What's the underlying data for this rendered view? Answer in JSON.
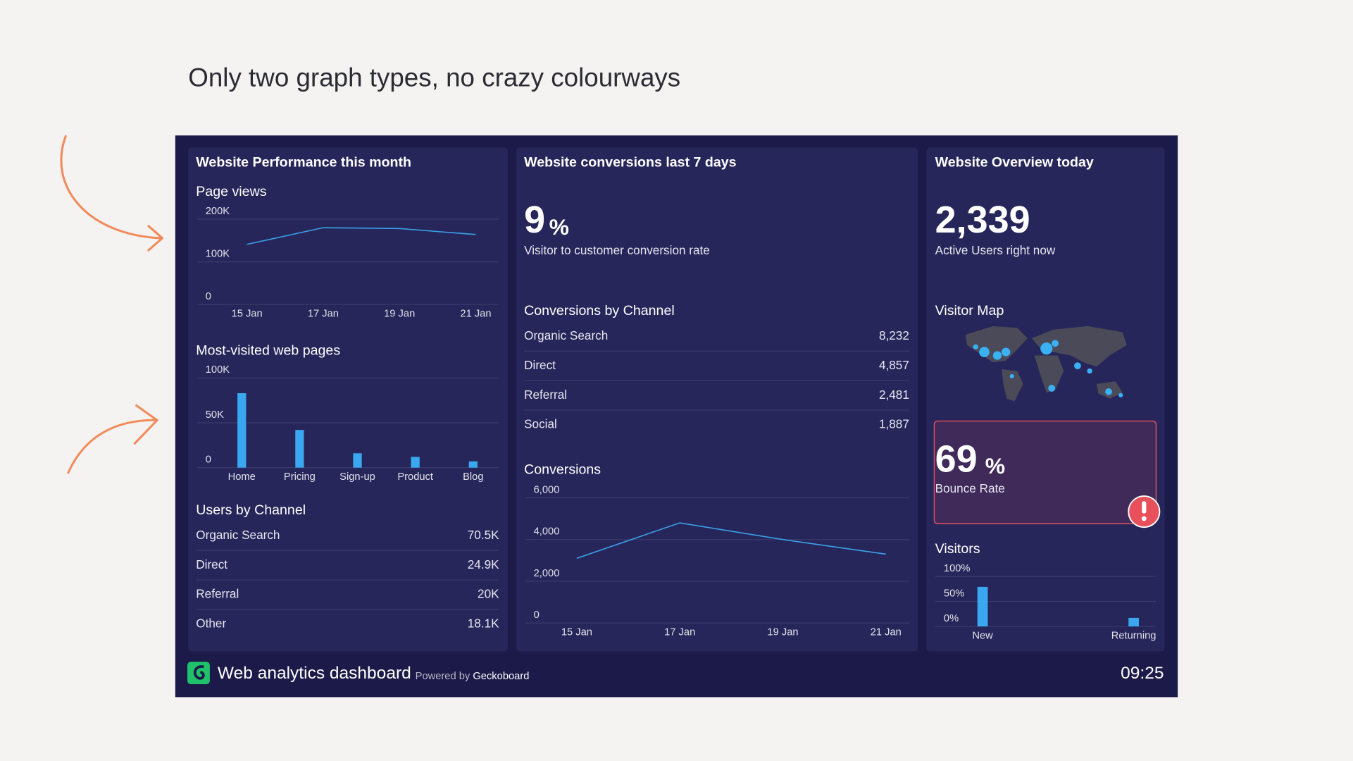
{
  "title": "Only two graph types, no crazy colourways",
  "panels": [
    {
      "title": "Website Performance this month",
      "table": {
        "title": "Users by Channel",
        "rows": [
          [
            "Organic Search",
            "70.5K"
          ],
          [
            "Direct",
            "24.9K"
          ],
          [
            "Referral",
            "20K"
          ],
          [
            "Other",
            "18.1K"
          ]
        ]
      }
    },
    {
      "title": "Website conversions last 7 days",
      "kpi": {
        "value": "9",
        "unit": "%",
        "label": "Visitor to customer conversion rate"
      },
      "table": {
        "title": "Conversions by Channel",
        "rows": [
          [
            "Organic Search",
            "8,232"
          ],
          [
            "Direct",
            "4,857"
          ],
          [
            "Referral",
            "2,481"
          ],
          [
            "Social",
            "1,887"
          ]
        ]
      }
    },
    {
      "title": "Website Overview today",
      "kpi": {
        "value": "2,339",
        "label": "Active Users right now"
      },
      "map_title": "Visitor Map",
      "alert": {
        "value": "69",
        "unit": "%",
        "label": "Bounce Rate"
      }
    }
  ],
  "footer": {
    "title": "Web analytics dashboard",
    "powered_by": "Powered by",
    "brand": "Geckoboard",
    "time": "09:25"
  },
  "chart_data": [
    {
      "type": "line",
      "title": "Page views",
      "categories": [
        "15 Jan",
        "17 Jan",
        "19 Jan",
        "21 Jan"
      ],
      "values": [
        141000,
        180000,
        178000,
        164000
      ],
      "color": "#3aa1e8",
      "ylim": [
        0,
        200000
      ],
      "yticks": [
        0,
        {
          "value": 100000,
          "label": "100K"
        },
        {
          "value": 200000,
          "label": "200K"
        }
      ]
    },
    {
      "type": "bar",
      "title": "Most-visited web pages",
      "categories": [
        "Home",
        "Pricing",
        "Sign-up",
        "Product",
        "Blog"
      ],
      "values": [
        83000,
        42000,
        16000,
        12000,
        7000
      ],
      "color": "#3aa8f0",
      "ylim": [
        0,
        100000
      ],
      "yticks": [
        0,
        {
          "value": 50000,
          "label": "50K"
        },
        {
          "value": 100000,
          "label": "100K"
        }
      ]
    },
    {
      "type": "line",
      "title": "Conversions",
      "categories": [
        "15 Jan",
        "17 Jan",
        "19 Jan",
        "21 Jan"
      ],
      "values": [
        3100,
        4800,
        4000,
        3300
      ],
      "color": "#3aa1e8",
      "ylim": [
        0,
        6000
      ],
      "yticks": [
        0,
        {
          "value": 2000,
          "label": "2,000"
        },
        {
          "value": 4000,
          "label": "4,000"
        },
        {
          "value": 6000,
          "label": "6,000"
        }
      ]
    },
    {
      "type": "bar",
      "title": "Visitors",
      "categories": [
        "New",
        "Returning"
      ],
      "values": [
        79,
        17
      ],
      "color": "#3aa8f0",
      "ylim": [
        0,
        100
      ],
      "yticks": [
        {
          "value": 0,
          "label": "0%"
        },
        {
          "value": 50,
          "label": "50%"
        },
        {
          "value": 100,
          "label": "100%"
        }
      ]
    }
  ]
}
